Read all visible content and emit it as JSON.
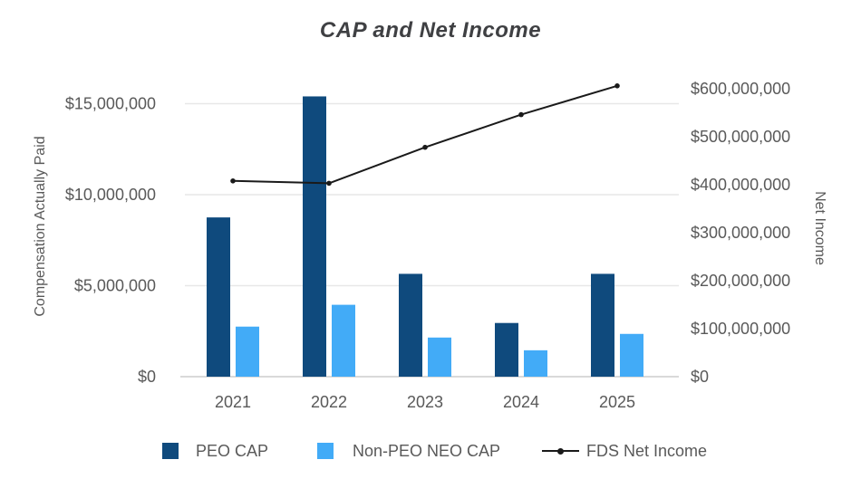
{
  "chart_data": {
    "type": "bar",
    "subtype": "grouped-bar-with-line-overlay",
    "title": "CAP and Net Income",
    "categories": [
      "2021",
      "2022",
      "2023",
      "2024",
      "2025"
    ],
    "series": [
      {
        "name": "PEO CAP",
        "type": "bar",
        "axis": "left",
        "color": "#0f4a7d",
        "values": [
          8750000,
          15400000,
          5650000,
          2950000,
          5650000
        ]
      },
      {
        "name": "Non-PEO NEO CAP",
        "type": "bar",
        "axis": "left",
        "color": "#42abf7",
        "values": [
          2750000,
          3950000,
          2150000,
          1450000,
          2350000
        ]
      },
      {
        "name": "FDS Net Income",
        "type": "line",
        "axis": "right",
        "color": "#1a1a1a",
        "values": [
          408000000,
          403000000,
          478000000,
          546000000,
          606000000
        ]
      }
    ],
    "left_axis": {
      "label": "Compensation Actually Paid",
      "ticks": [
        0,
        5000000,
        10000000,
        15000000
      ],
      "tick_labels": [
        "$0",
        "$5,000,000",
        "$10,000,000",
        "$15,000,000"
      ],
      "range": [
        0,
        16500000
      ]
    },
    "right_axis": {
      "label": "Net Income",
      "ticks": [
        0,
        100000000,
        200000000,
        300000000,
        400000000,
        500000000,
        600000000
      ],
      "tick_labels": [
        "$0",
        "$100,000,000",
        "$200,000,000",
        "$300,000,000",
        "$400,000,000",
        "$500,000,000",
        "$600,000,000"
      ],
      "range": [
        0,
        624000000
      ]
    },
    "grid": "horizontal",
    "gridline_color": "#e7e7e7",
    "axis_line_color": "#d9d9d9",
    "tick_text_color": "#595959",
    "legend_position": "bottom"
  }
}
